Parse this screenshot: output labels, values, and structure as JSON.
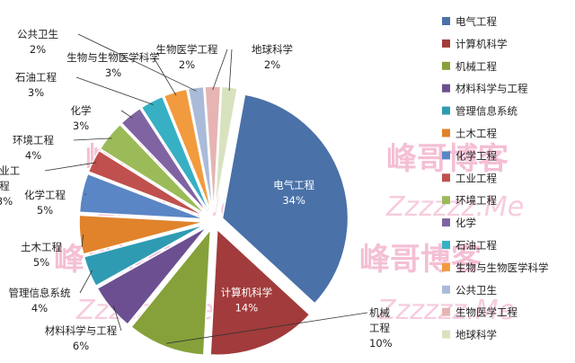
{
  "chart_data": {
    "type": "pie",
    "title": "",
    "legend_position": "right",
    "slices": [
      {
        "label": "电气工程",
        "value": 34,
        "value_label": "34%",
        "color": "#4a71a8"
      },
      {
        "label": "计算机科学",
        "value": 14,
        "value_label": "14%",
        "color": "#a23b3b"
      },
      {
        "label": "机械工程",
        "value": 10,
        "value_label": "10%",
        "color": "#86a13a"
      },
      {
        "label": "材料科学与工程",
        "value": 6,
        "value_label": "6%",
        "color": "#6c4f91"
      },
      {
        "label": "管理信息系统",
        "value": 4,
        "value_label": "4%",
        "color": "#2f9bb3"
      },
      {
        "label": "土木工程",
        "value": 5,
        "value_label": "5%",
        "color": "#e0832b"
      },
      {
        "label": "化学工程",
        "value": 5,
        "value_label": "5%",
        "color": "#5a86c5"
      },
      {
        "label": "工业工程",
        "value": 3,
        "value_label": "3%",
        "color": "#c0504d"
      },
      {
        "label": "环境工程",
        "value": 4,
        "value_label": "4%",
        "color": "#9bbb59"
      },
      {
        "label": "化学",
        "value": 3,
        "value_label": "3%",
        "color": "#8064a2"
      },
      {
        "label": "石油工程",
        "value": 3,
        "value_label": "3%",
        "color": "#37b0c4"
      },
      {
        "label": "生物与生物医学科学",
        "value": 3,
        "value_label": "3%",
        "color": "#f29b3e"
      },
      {
        "label": "公共卫生",
        "value": 2,
        "value_label": "2%",
        "color": "#a9bbd8"
      },
      {
        "label": "生物医学工程",
        "value": 2,
        "value_label": "2%",
        "color": "#e6b5b3"
      },
      {
        "label": "地球科学",
        "value": 2,
        "value_label": "2%",
        "color": "#d8e2bf"
      }
    ],
    "display_labels": [
      {
        "line1": "电气工程",
        "line2": "34%"
      },
      {
        "line1": "计算机科学",
        "line2": "14%"
      },
      {
        "line1": "机械",
        "line2": "工程",
        "line3": "10%"
      },
      {
        "line1": "材料科学与工程",
        "line2": "6%"
      },
      {
        "line1": "管理信息系统",
        "line2": "4%"
      },
      {
        "line1": "土木工程",
        "line2": "5%"
      },
      {
        "line1": "化学工程",
        "line2": "5%"
      },
      {
        "line1": "工业工",
        "line2": "程",
        "line3": "3%"
      },
      {
        "line1": "环境工程",
        "line2": "4%"
      },
      {
        "line1": "化学",
        "line2": "3%"
      },
      {
        "line1": "石油工程",
        "line2": "3%"
      },
      {
        "line1": "生物与生物医学科学",
        "line2": "3%"
      },
      {
        "line1": "公共卫生",
        "line2": "2%"
      },
      {
        "line1": "生物医学工程",
        "line2": "2%"
      },
      {
        "line1": "地球科学",
        "line2": "2%"
      }
    ]
  },
  "watermark": {
    "brand": "峰哥博客",
    "url": "Zzzzzz.Me"
  }
}
